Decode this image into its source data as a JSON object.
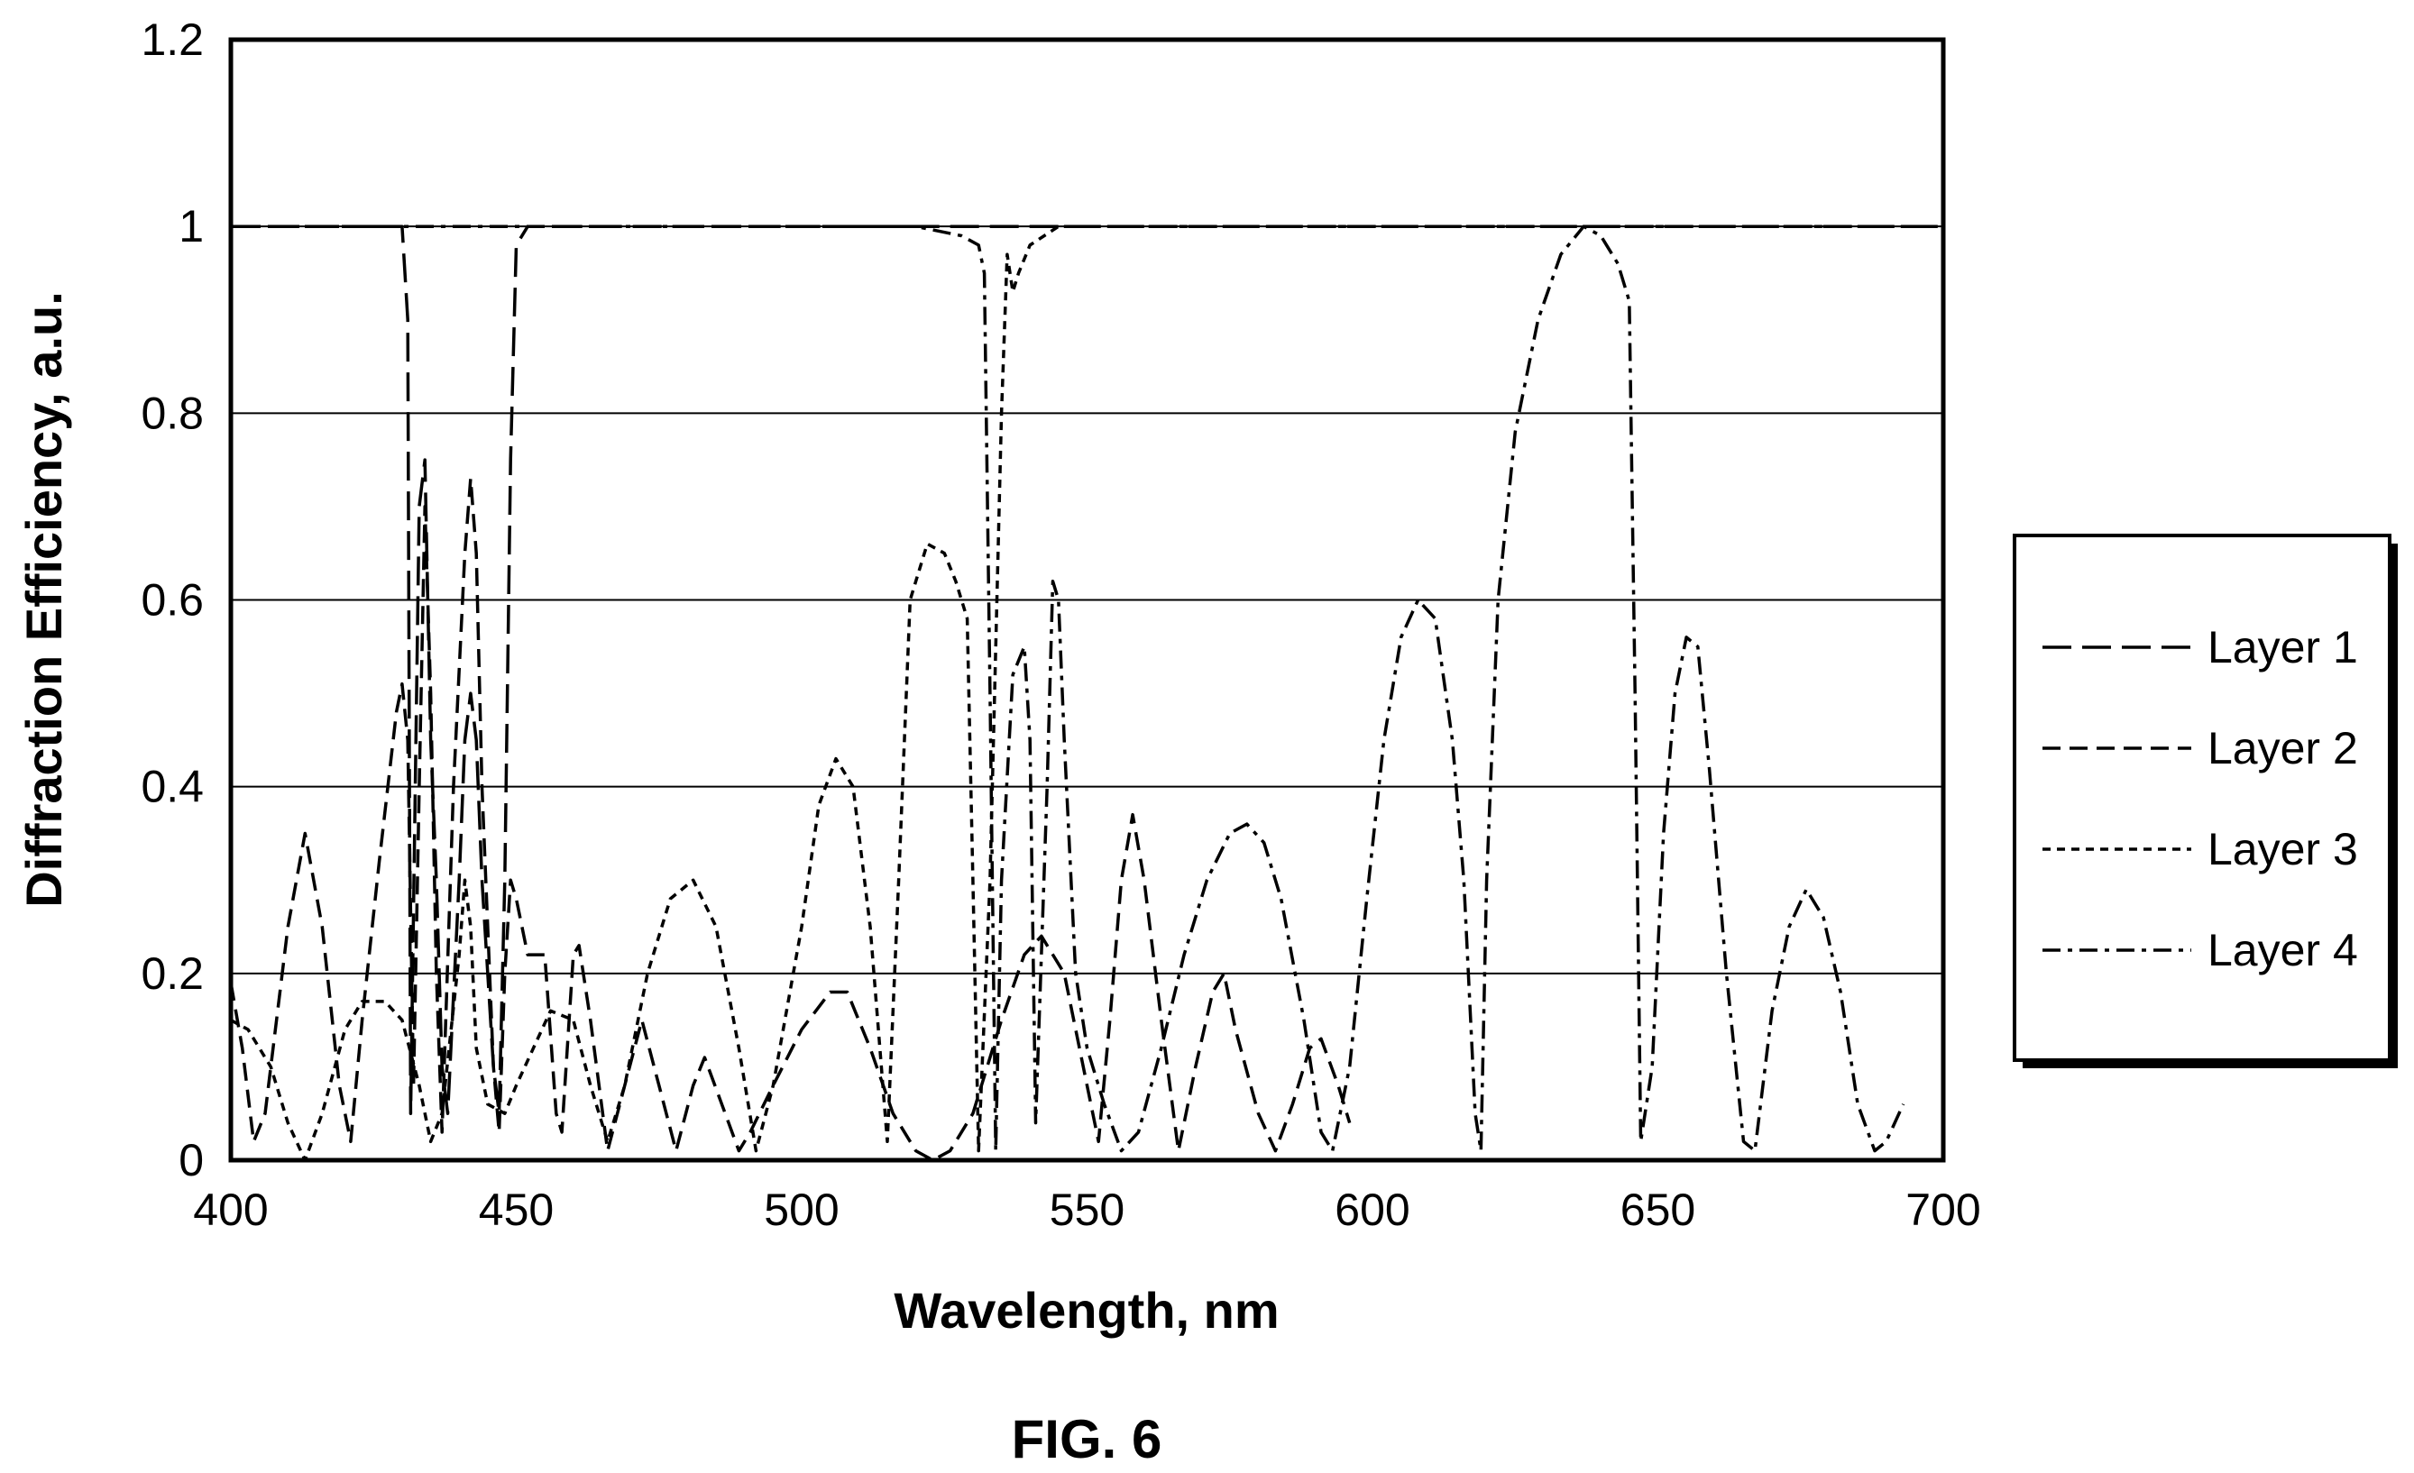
{
  "figure": {
    "caption": "FIG. 6"
  },
  "chart_data": {
    "type": "line",
    "xlabel": "Wavelength, nm",
    "ylabel": "Diffraction Efficiency, a.u.",
    "xlim": [
      400,
      700
    ],
    "ylim": [
      0,
      1.2
    ],
    "x_ticks": [
      "400",
      "450",
      "500",
      "550",
      "600",
      "650",
      "700"
    ],
    "y_ticks": [
      "0",
      "0.2",
      "0.4",
      "0.6",
      "0.8",
      "1",
      "1.2"
    ],
    "grid": "horizontal",
    "legend_position": "right",
    "line_color": "#000000",
    "series": [
      {
        "name": "Layer 1",
        "dash": "long-dash",
        "points": [
          [
            400,
            1
          ],
          [
            425,
            1
          ],
          [
            430,
            1
          ],
          [
            431,
            0.9
          ],
          [
            431.5,
            0.05
          ],
          [
            433,
            0.7
          ],
          [
            434,
            0.75
          ],
          [
            435,
            0.45
          ],
          [
            436,
            0.3
          ],
          [
            437,
            0.1
          ],
          [
            438,
            0.05
          ],
          [
            440,
            0.3
          ],
          [
            441,
            0.45
          ],
          [
            442,
            0.5
          ],
          [
            443,
            0.45
          ],
          [
            444,
            0.3
          ],
          [
            446,
            0.1
          ],
          [
            447,
            0.05
          ],
          [
            448,
            0.3
          ],
          [
            449,
            0.75
          ],
          [
            450,
            0.98
          ],
          [
            452,
            1
          ],
          [
            460,
            1
          ],
          [
            500,
            1
          ],
          [
            550,
            1
          ],
          [
            600,
            1
          ],
          [
            650,
            1
          ],
          [
            700,
            1
          ]
        ]
      },
      {
        "name": "Layer 2",
        "dash": "dash",
        "points": [
          [
            400,
            0.19
          ],
          [
            402,
            0.12
          ],
          [
            404,
            0.02
          ],
          [
            406,
            0.05
          ],
          [
            410,
            0.25
          ],
          [
            413,
            0.35
          ],
          [
            416,
            0.25
          ],
          [
            419,
            0.08
          ],
          [
            421,
            0.02
          ],
          [
            423,
            0.15
          ],
          [
            426,
            0.32
          ],
          [
            429,
            0.48
          ],
          [
            430,
            0.51
          ],
          [
            431,
            0.45
          ],
          [
            432,
            0.08
          ],
          [
            433,
            0.4
          ],
          [
            434,
            0.7
          ],
          [
            435,
            0.5
          ],
          [
            436,
            0.2
          ],
          [
            437,
            0.03
          ],
          [
            439,
            0.4
          ],
          [
            441,
            0.65
          ],
          [
            442,
            0.73
          ],
          [
            443,
            0.65
          ],
          [
            444,
            0.4
          ],
          [
            446,
            0.1
          ],
          [
            447,
            0.03
          ],
          [
            448,
            0.2
          ],
          [
            449,
            0.3
          ],
          [
            450,
            0.28
          ],
          [
            452,
            0.22
          ],
          [
            455,
            0.22
          ],
          [
            457,
            0.05
          ],
          [
            458,
            0.03
          ],
          [
            460,
            0.22
          ],
          [
            461,
            0.23
          ],
          [
            463,
            0.15
          ],
          [
            466,
            0.01
          ],
          [
            469,
            0.08
          ],
          [
            472,
            0.15
          ],
          [
            475,
            0.08
          ],
          [
            478,
            0.01
          ],
          [
            481,
            0.08
          ],
          [
            483,
            0.11
          ],
          [
            486,
            0.06
          ],
          [
            489,
            0.01
          ],
          [
            491,
            0.03
          ],
          [
            495,
            0.08
          ],
          [
            500,
            0.14
          ],
          [
            505,
            0.18
          ],
          [
            508,
            0.18
          ],
          [
            512,
            0.12
          ],
          [
            516,
            0.05
          ],
          [
            520,
            0.01
          ],
          [
            523,
            0
          ],
          [
            526,
            0.01
          ],
          [
            530,
            0.05
          ],
          [
            535,
            0.15
          ],
          [
            539,
            0.22
          ],
          [
            542,
            0.24
          ],
          [
            546,
            0.2
          ],
          [
            550,
            0.08
          ],
          [
            552,
            0.02
          ],
          [
            554,
            0.15
          ],
          [
            556,
            0.3
          ],
          [
            558,
            0.37
          ],
          [
            560,
            0.3
          ],
          [
            563,
            0.15
          ],
          [
            566,
            0.01
          ],
          [
            569,
            0.1
          ],
          [
            572,
            0.18
          ],
          [
            574,
            0.2
          ],
          [
            576,
            0.14
          ],
          [
            580,
            0.05
          ],
          [
            583,
            0.01
          ],
          [
            586,
            0.06
          ],
          [
            589,
            0.12
          ],
          [
            591,
            0.13
          ],
          [
            594,
            0.08
          ],
          [
            596,
            0.04
          ]
        ]
      },
      {
        "name": "Layer 3",
        "dash": "short-dash",
        "points": [
          [
            400,
            0.15
          ],
          [
            403,
            0.14
          ],
          [
            407,
            0.1
          ],
          [
            410,
            0.04
          ],
          [
            413,
            0
          ],
          [
            416,
            0.05
          ],
          [
            420,
            0.14
          ],
          [
            423,
            0.17
          ],
          [
            427,
            0.17
          ],
          [
            430,
            0.15
          ],
          [
            433,
            0.08
          ],
          [
            435,
            0.02
          ],
          [
            437,
            0.05
          ],
          [
            440,
            0.22
          ],
          [
            441,
            0.3
          ],
          [
            442,
            0.25
          ],
          [
            443,
            0.12
          ],
          [
            445,
            0.06
          ],
          [
            448,
            0.05
          ],
          [
            450,
            0.08
          ],
          [
            453,
            0.12
          ],
          [
            456,
            0.16
          ],
          [
            460,
            0.15
          ],
          [
            463,
            0.08
          ],
          [
            466,
            0.02
          ],
          [
            469,
            0.08
          ],
          [
            473,
            0.2
          ],
          [
            477,
            0.28
          ],
          [
            481,
            0.3
          ],
          [
            485,
            0.25
          ],
          [
            489,
            0.12
          ],
          [
            492,
            0.01
          ],
          [
            495,
            0.08
          ],
          [
            500,
            0.25
          ],
          [
            503,
            0.38
          ],
          [
            506,
            0.43
          ],
          [
            509,
            0.4
          ],
          [
            512,
            0.25
          ],
          [
            515,
            0.02
          ],
          [
            517,
            0.3
          ],
          [
            519,
            0.6
          ],
          [
            522,
            0.66
          ],
          [
            525,
            0.65
          ],
          [
            527,
            0.62
          ],
          [
            529,
            0.58
          ],
          [
            530,
            0.3
          ],
          [
            531,
            0.01
          ],
          [
            533,
            0.3
          ],
          [
            535,
            0.8
          ],
          [
            536,
            0.97
          ],
          [
            537,
            0.93
          ],
          [
            538,
            0.95
          ],
          [
            540,
            0.98
          ],
          [
            545,
            1
          ],
          [
            550,
            1
          ],
          [
            600,
            1
          ],
          [
            650,
            1
          ],
          [
            700,
            1
          ]
        ]
      },
      {
        "name": "Layer 4",
        "dash": "dash-dot",
        "points": [
          [
            400,
            1
          ],
          [
            500,
            1
          ],
          [
            520,
            1
          ],
          [
            528,
            0.99
          ],
          [
            531,
            0.98
          ],
          [
            532,
            0.95
          ],
          [
            533,
            0.5
          ],
          [
            534,
            0.01
          ],
          [
            535,
            0.3
          ],
          [
            537,
            0.52
          ],
          [
            539,
            0.55
          ],
          [
            540,
            0.45
          ],
          [
            541,
            0.04
          ],
          [
            543,
            0.4
          ],
          [
            544,
            0.62
          ],
          [
            545,
            0.6
          ],
          [
            546,
            0.45
          ],
          [
            548,
            0.2
          ],
          [
            550,
            0.12
          ],
          [
            553,
            0.06
          ],
          [
            556,
            0.01
          ],
          [
            559,
            0.03
          ],
          [
            563,
            0.12
          ],
          [
            567,
            0.22
          ],
          [
            571,
            0.3
          ],
          [
            575,
            0.35
          ],
          [
            578,
            0.36
          ],
          [
            581,
            0.34
          ],
          [
            584,
            0.28
          ],
          [
            588,
            0.15
          ],
          [
            591,
            0.03
          ],
          [
            593,
            0.01
          ],
          [
            596,
            0.1
          ],
          [
            599,
            0.28
          ],
          [
            602,
            0.45
          ],
          [
            605,
            0.56
          ],
          [
            608,
            0.6
          ],
          [
            611,
            0.58
          ],
          [
            614,
            0.45
          ],
          [
            616,
            0.3
          ],
          [
            618,
            0.05
          ],
          [
            619,
            0.01
          ],
          [
            620,
            0.3
          ],
          [
            622,
            0.6
          ],
          [
            625,
            0.78
          ],
          [
            629,
            0.9
          ],
          [
            633,
            0.97
          ],
          [
            637,
            1
          ],
          [
            640,
            0.99
          ],
          [
            643,
            0.96
          ],
          [
            645,
            0.92
          ],
          [
            646,
            0.5
          ],
          [
            647,
            0.02
          ],
          [
            649,
            0.1
          ],
          [
            651,
            0.35
          ],
          [
            653,
            0.5
          ],
          [
            655,
            0.56
          ],
          [
            657,
            0.55
          ],
          [
            659,
            0.42
          ],
          [
            662,
            0.2
          ],
          [
            665,
            0.02
          ],
          [
            667,
            0.01
          ],
          [
            670,
            0.16
          ],
          [
            673,
            0.25
          ],
          [
            676,
            0.29
          ],
          [
            679,
            0.26
          ],
          [
            682,
            0.18
          ],
          [
            685,
            0.06
          ],
          [
            688,
            0.01
          ],
          [
            690,
            0.02
          ],
          [
            693,
            0.06
          ]
        ]
      }
    ]
  }
}
